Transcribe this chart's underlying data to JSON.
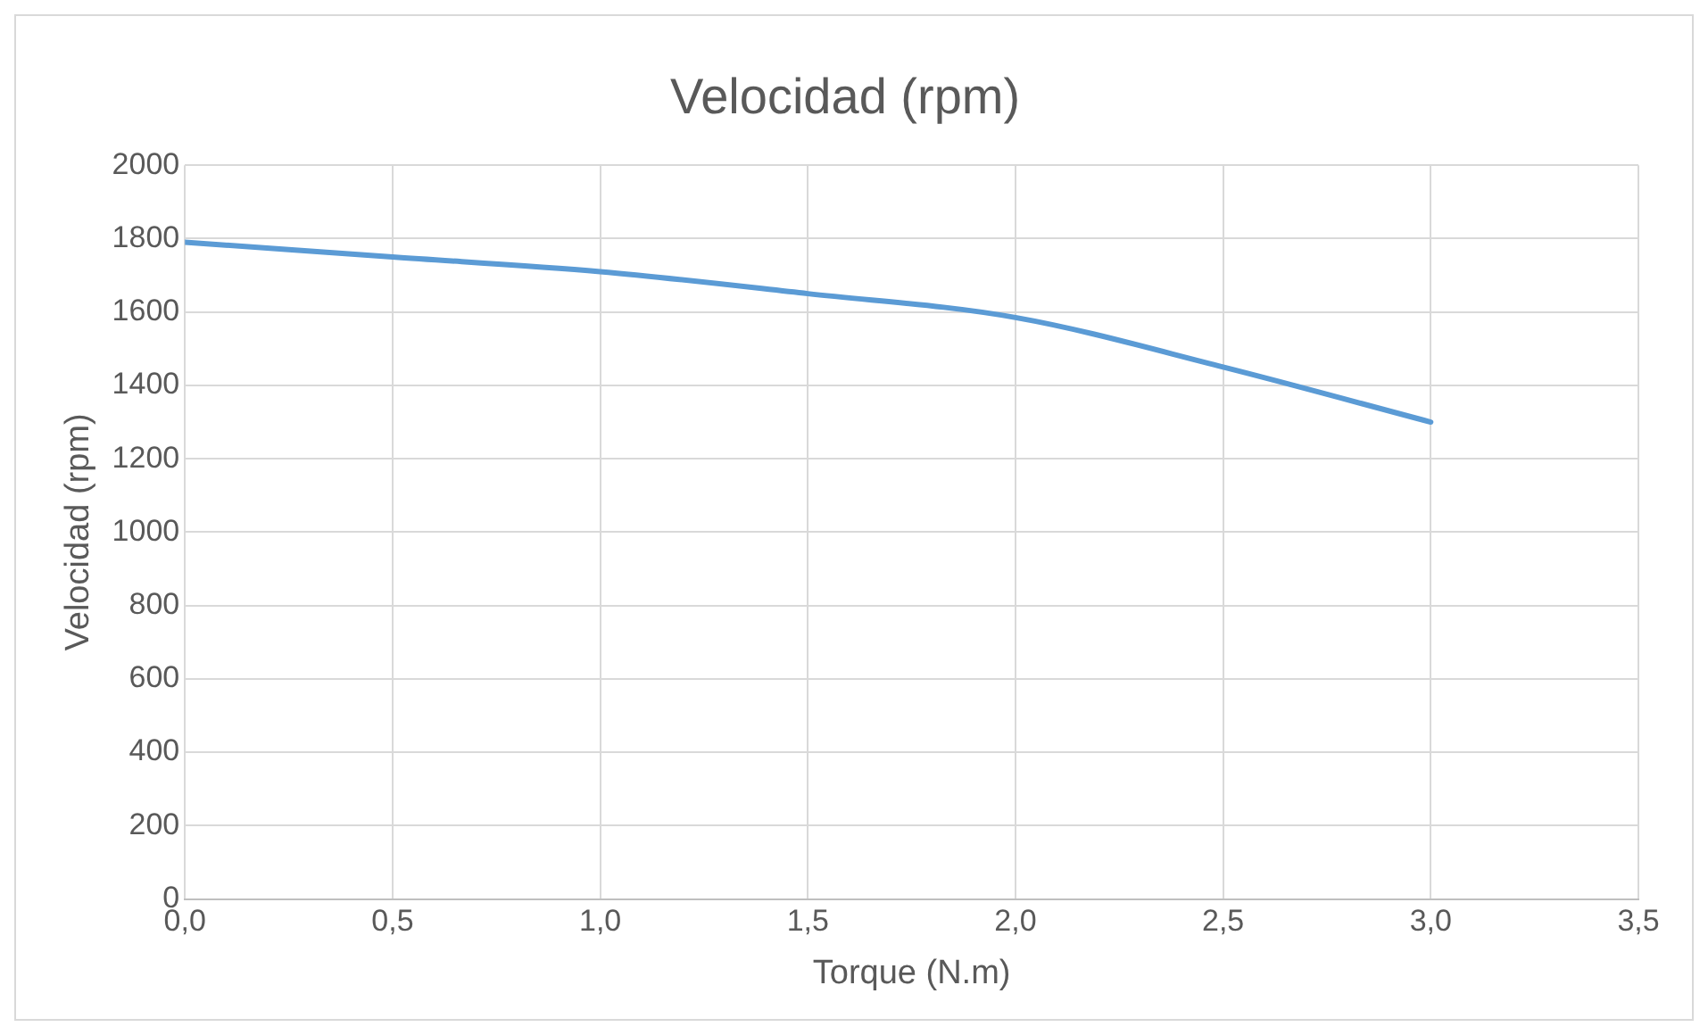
{
  "chart_data": {
    "type": "line",
    "title": "Velocidad (rpm)",
    "xlabel": "Torque (N.m)",
    "ylabel": "Velocidad (rpm)",
    "x": [
      0,
      0.5,
      1,
      1.5,
      2,
      2.5,
      3
    ],
    "series": [
      {
        "color": "#5b9bd5",
        "values": [
          1790,
          1750,
          1710,
          1650,
          1585,
          1450,
          1300
        ]
      }
    ],
    "xlim": [
      0,
      3.5
    ],
    "xticks": [
      {
        "value": 0,
        "label": "0,0"
      },
      {
        "value": 0.5,
        "label": "0,5"
      },
      {
        "value": 1,
        "label": "1,0"
      },
      {
        "value": 1.5,
        "label": "1,5"
      },
      {
        "value": 2,
        "label": "2,0"
      },
      {
        "value": 2.5,
        "label": "2,5"
      },
      {
        "value": 3,
        "label": "3,0"
      },
      {
        "value": 3.5,
        "label": "3,5"
      }
    ],
    "ylim": [
      0,
      2000
    ],
    "yticks": [
      0,
      200,
      400,
      600,
      800,
      1000,
      1200,
      1400,
      1600,
      1800,
      2000
    ],
    "grid": true,
    "legend": false,
    "marker": "none",
    "line_style": "solid"
  }
}
